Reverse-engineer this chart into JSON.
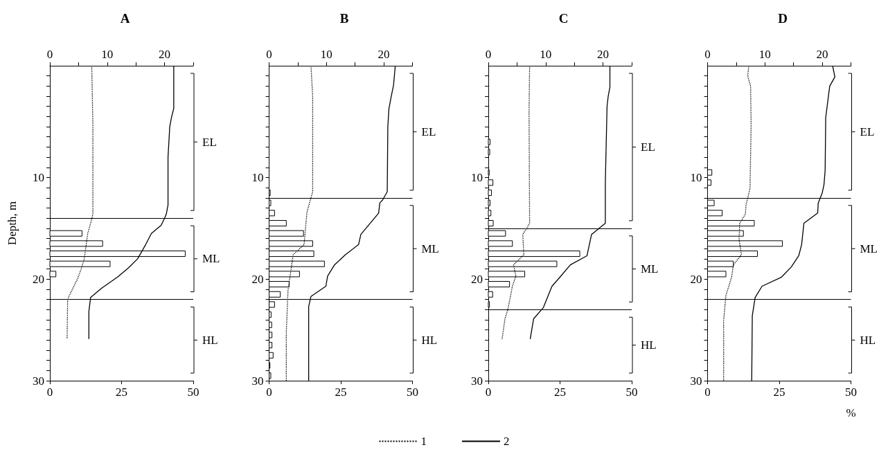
{
  "chart_data": [
    {
      "type": "line",
      "title": "A",
      "ylabel": "Depth, m",
      "orientation": "horizontal",
      "marker": "none",
      "legend": "bottom",
      "xlim": [
        0,
        50
      ],
      "xticks": [
        0,
        25,
        50
      ],
      "x2lim": [
        0,
        25
      ],
      "x2ticks": [
        0,
        {
          "value": 5,
          "label": null
        },
        10,
        {
          "value": 15,
          "label": null
        },
        20,
        {
          "value": 25,
          "label": null
        }
      ],
      "ylim": [
        30,
        -1
      ],
      "yticks": [
        {
          "value": 0,
          "label": null
        },
        {
          "value": 1,
          "label": null
        },
        {
          "value": 2,
          "label": null
        },
        {
          "value": 3,
          "label": null
        },
        {
          "value": 4,
          "label": null
        },
        {
          "value": 5,
          "label": null
        },
        {
          "value": 6,
          "label": null
        },
        {
          "value": 7,
          "label": null
        },
        {
          "value": 8,
          "label": null
        },
        {
          "value": 9,
          "label": null
        },
        10,
        {
          "value": 11,
          "label": null
        },
        {
          "value": 12,
          "label": null
        },
        {
          "value": 13,
          "label": null
        },
        {
          "value": 14,
          "label": null
        },
        {
          "value": 15,
          "label": null
        },
        {
          "value": 16,
          "label": null
        },
        {
          "value": 17,
          "label": null
        },
        {
          "value": 18,
          "label": null
        },
        {
          "value": 19,
          "label": null
        },
        20,
        {
          "value": 21,
          "label": null
        },
        {
          "value": 22,
          "label": null
        },
        {
          "value": 23,
          "label": null
        },
        {
          "value": 24,
          "label": null
        },
        {
          "value": 25,
          "label": null
        },
        {
          "value": 26,
          "label": null
        },
        {
          "value": 27,
          "label": null
        },
        {
          "value": 28,
          "label": null
        },
        {
          "value": 29,
          "label": null
        },
        30
      ],
      "series": [
        {
          "name": "1",
          "type": "line",
          "axis": "x2",
          "line_style": "dotted",
          "color": "#000000",
          "x": [
            -1,
            4.8,
            13.6,
            14.3,
            15.5,
            18.0,
            19.1,
            20.0,
            21.6,
            22.0,
            25.9
          ],
          "values": [
            7.3,
            7.5,
            7.5,
            7.2,
            6.6,
            6.0,
            5.4,
            4.8,
            3.4,
            3.1,
            3.0
          ]
        },
        {
          "name": "2",
          "type": "line",
          "axis": "x2",
          "line_style": "solid",
          "color": "#000000",
          "x": [
            -1,
            3.2,
            4.1,
            5.0,
            8.0,
            12.7,
            13.6,
            14.0,
            14.7,
            15.5,
            16.6,
            18.0,
            18.9,
            19.8,
            20.9,
            21.8,
            23.2,
            25.9
          ],
          "values": [
            21.6,
            21.6,
            21.2,
            20.9,
            20.6,
            20.6,
            20.3,
            20.0,
            19.4,
            17.7,
            16.7,
            15.3,
            13.7,
            11.8,
            9.0,
            7.1,
            6.8,
            6.8
          ]
        },
        {
          "type": "bar",
          "color": "#ffffff",
          "x": [
            15.5,
            16.5,
            17.5,
            18.5,
            19.5
          ],
          "values": [
            11.2,
            18.4,
            47.2,
            21.0,
            2.1
          ]
        }
      ],
      "ref_lines": [
        {
          "axis": "y",
          "value": 14
        },
        {
          "axis": "y",
          "value": 22
        }
      ],
      "annotations": [
        "EL",
        "ML",
        "HL"
      ]
    },
    {
      "type": "line",
      "title": "B",
      "orientation": "horizontal",
      "marker": "none",
      "xlim": [
        0,
        50
      ],
      "xticks": [
        0,
        25,
        50
      ],
      "x2lim": [
        0,
        25
      ],
      "x2ticks": [
        0,
        {
          "value": 5,
          "label": null
        },
        10,
        {
          "value": 15,
          "label": null
        },
        20,
        {
          "value": 25,
          "label": null
        }
      ],
      "ylim": [
        30,
        -1
      ],
      "yticks": [
        {
          "value": 0,
          "label": null
        },
        {
          "value": 1,
          "label": null
        },
        {
          "value": 2,
          "label": null
        },
        {
          "value": 3,
          "label": null
        },
        {
          "value": 4,
          "label": null
        },
        {
          "value": 5,
          "label": null
        },
        {
          "value": 6,
          "label": null
        },
        {
          "value": 7,
          "label": null
        },
        {
          "value": 8,
          "label": null
        },
        {
          "value": 9,
          "label": null
        },
        10,
        {
          "value": 11,
          "label": null
        },
        {
          "value": 12,
          "label": null
        },
        {
          "value": 13,
          "label": null
        },
        {
          "value": 14,
          "label": null
        },
        {
          "value": 15,
          "label": null
        },
        {
          "value": 16,
          "label": null
        },
        {
          "value": 17,
          "label": null
        },
        {
          "value": 18,
          "label": null
        },
        {
          "value": 19,
          "label": null
        },
        20,
        {
          "value": 21,
          "label": null
        },
        {
          "value": 22,
          "label": null
        },
        {
          "value": 23,
          "label": null
        },
        {
          "value": 24,
          "label": null
        },
        {
          "value": 25,
          "label": null
        },
        {
          "value": 26,
          "label": null
        },
        {
          "value": 27,
          "label": null
        },
        {
          "value": 28,
          "label": null
        },
        {
          "value": 29,
          "label": null
        },
        30
      ],
      "series": [
        {
          "name": "1",
          "type": "line",
          "axis": "x2",
          "line_style": "dotted",
          "color": "#000000",
          "x": [
            -1,
            2.0,
            11.4,
            13.4,
            16.6,
            17.6,
            21.1,
            25.2,
            30
          ],
          "values": [
            7.3,
            7.6,
            7.6,
            6.6,
            6.1,
            4.2,
            3.3,
            3.0,
            3.0
          ]
        },
        {
          "name": "2",
          "type": "line",
          "axis": "x2",
          "line_style": "solid",
          "color": "#000000",
          "x": [
            -1,
            0.9,
            2.0,
            3.2,
            5.0,
            11.4,
            12.2,
            12.5,
            13.5,
            15.6,
            16.6,
            17.6,
            18.6,
            19.7,
            20.7,
            21.7,
            22.7,
            30
          ],
          "values": [
            22.0,
            21.7,
            21.3,
            20.9,
            20.7,
            20.6,
            19.8,
            19.3,
            19.1,
            16.0,
            15.6,
            13.3,
            11.4,
            10.2,
            9.9,
            7.3,
            6.9,
            6.9
          ]
        },
        {
          "type": "bar",
          "color": "#ffffff",
          "x": [
            11.5,
            12.5,
            13.5,
            14.5,
            15.5,
            16.5,
            17.5,
            18.5,
            19.5,
            20.5,
            21.5,
            22.5,
            23.5,
            24.5,
            25.5,
            26.5,
            27.5,
            28.5,
            29.5
          ],
          "values": [
            0.4,
            0.6,
            1.9,
            6.0,
            12.0,
            15.2,
            15.6,
            19.3,
            10.6,
            7.0,
            3.9,
            1.9,
            0.7,
            0.9,
            1.0,
            1.0,
            1.4,
            0.3,
            0.6
          ]
        }
      ],
      "ref_lines": [
        {
          "axis": "y",
          "value": 12
        },
        {
          "axis": "y",
          "value": 22
        }
      ],
      "annotations": [
        "EL",
        "ML",
        "HL"
      ]
    },
    {
      "type": "line",
      "title": "C",
      "orientation": "horizontal",
      "marker": "none",
      "xlim": [
        0,
        50
      ],
      "xticks": [
        0,
        25,
        50
      ],
      "x2lim": [
        0,
        25
      ],
      "x2ticks": [
        0,
        {
          "value": 5,
          "label": null
        },
        10,
        {
          "value": 15,
          "label": null
        },
        20,
        {
          "value": 25,
          "label": null
        }
      ],
      "ylim": [
        30,
        -1
      ],
      "yticks": [
        {
          "value": 0,
          "label": null
        },
        {
          "value": 1,
          "label": null
        },
        {
          "value": 2,
          "label": null
        },
        {
          "value": 3,
          "label": null
        },
        {
          "value": 4,
          "label": null
        },
        {
          "value": 5,
          "label": null
        },
        {
          "value": 6,
          "label": null
        },
        {
          "value": 7,
          "label": null
        },
        {
          "value": 8,
          "label": null
        },
        {
          "value": 9,
          "label": null
        },
        10,
        {
          "value": 11,
          "label": null
        },
        {
          "value": 12,
          "label": null
        },
        {
          "value": 13,
          "label": null
        },
        {
          "value": 14,
          "label": null
        },
        {
          "value": 15,
          "label": null
        },
        {
          "value": 16,
          "label": null
        },
        {
          "value": 17,
          "label": null
        },
        {
          "value": 18,
          "label": null
        },
        {
          "value": 19,
          "label": null
        },
        20,
        {
          "value": 21,
          "label": null
        },
        {
          "value": 22,
          "label": null
        },
        {
          "value": 23,
          "label": null
        },
        {
          "value": 24,
          "label": null
        },
        {
          "value": 25,
          "label": null
        },
        {
          "value": 26,
          "label": null
        },
        {
          "value": 27,
          "label": null
        },
        {
          "value": 28,
          "label": null
        },
        {
          "value": 29,
          "label": null
        },
        30
      ],
      "series": [
        {
          "name": "1",
          "type": "line",
          "axis": "x2",
          "line_style": "dotted",
          "color": "#000000",
          "x": [
            -1,
            3.6,
            14.5,
            14.9,
            15.6,
            17.6,
            18.6,
            19.7,
            20.7,
            23.0,
            23.9,
            25.9
          ],
          "values": [
            7.2,
            7.1,
            7.2,
            6.8,
            6.0,
            6.2,
            4.4,
            4.8,
            4.2,
            3.4,
            2.9,
            2.4
          ]
        },
        {
          "name": "2",
          "type": "line",
          "axis": "x2",
          "line_style": "solid",
          "color": "#000000",
          "x": [
            -1,
            1.1,
            2.0,
            3.0,
            10.5,
            14.5,
            15.6,
            17.7,
            18.6,
            19.8,
            20.7,
            21.8,
            22.8,
            23.9,
            25.9
          ],
          "values": [
            21.2,
            21.2,
            20.9,
            20.7,
            20.4,
            20.4,
            18.0,
            17.2,
            14.3,
            12.5,
            11.1,
            10.3,
            9.6,
            7.9,
            7.3
          ]
        },
        {
          "type": "bar",
          "color": "#ffffff",
          "x": [
            6.5,
            7.5,
            9.5,
            10.5,
            11.5,
            12.5,
            13.5,
            14.5,
            15.5,
            16.5,
            17.5,
            18.5,
            19.5,
            20.5,
            21.5,
            22.5
          ],
          "values": [
            0.6,
            0.5,
            0.3,
            1.6,
            1.1,
            0.6,
            0.9,
            1.7,
            6.0,
            8.4,
            31.9,
            23.9,
            12.7,
            7.4,
            1.5,
            0.4
          ]
        }
      ],
      "ref_lines": [
        {
          "axis": "y",
          "value": 15
        },
        {
          "axis": "y",
          "value": 23
        }
      ],
      "annotations": [
        "EL",
        "ML",
        "HL"
      ]
    },
    {
      "type": "line",
      "title": "D",
      "xlabel": "%",
      "orientation": "horizontal",
      "marker": "none",
      "xlim": [
        0,
        50
      ],
      "xticks": [
        0,
        25,
        50
      ],
      "x2lim": [
        0,
        25
      ],
      "x2ticks": [
        0,
        {
          "value": 5,
          "label": null
        },
        10,
        {
          "value": 15,
          "label": null
        },
        20,
        {
          "value": 25,
          "label": null
        }
      ],
      "ylim": [
        30,
        -1
      ],
      "yticks": [
        {
          "value": 0,
          "label": null
        },
        {
          "value": 1,
          "label": null
        },
        {
          "value": 2,
          "label": null
        },
        {
          "value": 3,
          "label": null
        },
        {
          "value": 4,
          "label": null
        },
        {
          "value": 5,
          "label": null
        },
        {
          "value": 6,
          "label": null
        },
        {
          "value": 7,
          "label": null
        },
        {
          "value": 8,
          "label": null
        },
        {
          "value": 9,
          "label": null
        },
        10,
        {
          "value": 11,
          "label": null
        },
        {
          "value": 12,
          "label": null
        },
        {
          "value": 13,
          "label": null
        },
        {
          "value": 14,
          "label": null
        },
        {
          "value": 15,
          "label": null
        },
        {
          "value": 16,
          "label": null
        },
        {
          "value": 17,
          "label": null
        },
        {
          "value": 18,
          "label": null
        },
        {
          "value": 19,
          "label": null
        },
        20,
        {
          "value": 21,
          "label": null
        },
        {
          "value": 22,
          "label": null
        },
        {
          "value": 23,
          "label": null
        },
        {
          "value": 24,
          "label": null
        },
        {
          "value": 25,
          "label": null
        },
        {
          "value": 26,
          "label": null
        },
        {
          "value": 27,
          "label": null
        },
        {
          "value": 28,
          "label": null
        },
        {
          "value": 29,
          "label": null
        },
        30
      ],
      "series": [
        {
          "name": "1",
          "type": "line",
          "axis": "x2",
          "line_style": "dotted",
          "color": "#000000",
          "x": [
            -1,
            0,
            1.0,
            4.8,
            11.1,
            12.7,
            13.6,
            14.5,
            16.1,
            17.6,
            18.6,
            19.8,
            21.6,
            24.1,
            30
          ],
          "values": [
            7.2,
            7.0,
            7.5,
            7.6,
            7.4,
            6.7,
            6.6,
            5.6,
            5.5,
            5.9,
            4.5,
            4.2,
            3.2,
            2.8,
            2.8
          ]
        },
        {
          "name": "2",
          "type": "line",
          "axis": "x2",
          "line_style": "solid",
          "color": "#000000",
          "x": [
            -1,
            0.1,
            1.0,
            4.1,
            9.3,
            10.7,
            11.5,
            12.5,
            13.5,
            14.5,
            16.6,
            17.7,
            18.8,
            19.8,
            20.7,
            21.8,
            23.6,
            30
          ],
          "values": [
            21.8,
            22.2,
            21.3,
            20.6,
            20.5,
            20.3,
            20.0,
            19.3,
            19.2,
            16.8,
            16.4,
            15.9,
            14.6,
            12.9,
            9.5,
            8.3,
            7.8,
            7.7
          ]
        },
        {
          "type": "bar",
          "color": "#ffffff",
          "x": [
            9.5,
            10.5,
            12.5,
            13.5,
            14.5,
            15.5,
            16.5,
            17.5,
            18.5,
            19.5
          ],
          "values": [
            1.5,
            1.2,
            2.3,
            5.1,
            16.3,
            12.5,
            26.1,
            17.4,
            9.0,
            6.4
          ]
        }
      ],
      "ref_lines": [
        {
          "axis": "y",
          "value": 12
        },
        {
          "axis": "y",
          "value": 22
        }
      ],
      "annotations": [
        "EL",
        "ML",
        "HL"
      ]
    }
  ]
}
